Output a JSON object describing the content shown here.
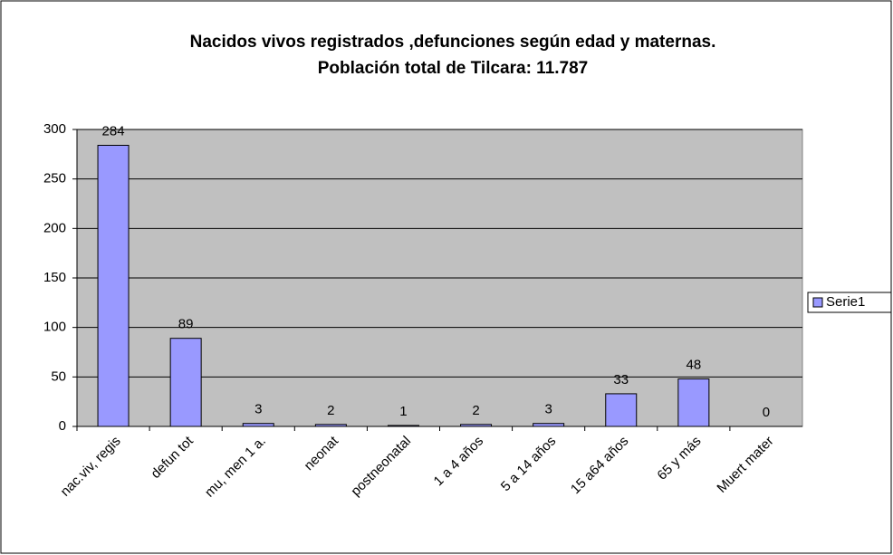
{
  "chart_data": {
    "type": "bar",
    "title": "Nacidos vivos registrados ,defunciones según edad y maternas.",
    "subtitle": "Población total de Tilcara: 11.787",
    "categories": [
      "nac.viv, regis",
      "defun tot",
      "mu, men 1 a.",
      "neonat",
      "postneonatal",
      "1 a 4 años",
      "5 a 14 años",
      "15 a64 años",
      "65 y más",
      "Muert mater"
    ],
    "series": [
      {
        "name": "Serie1",
        "color": "#9999ff",
        "values": [
          284,
          89,
          3,
          2,
          1,
          2,
          3,
          33,
          48,
          0
        ]
      }
    ],
    "ylim": [
      0,
      300
    ],
    "yticks": [
      0,
      50,
      100,
      150,
      200,
      250,
      300
    ],
    "grid": true,
    "legend": "right"
  }
}
